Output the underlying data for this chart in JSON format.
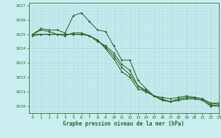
{
  "title": "Graphe pression niveau de la mer (hPa)",
  "bg_color": "#c8eef0",
  "grid_color": "#afd8da",
  "line_color": "#2d6a2d",
  "xlim": [
    -0.5,
    23
  ],
  "ylim": [
    1019.5,
    1027.2
  ],
  "yticks": [
    1020,
    1021,
    1022,
    1023,
    1024,
    1025,
    1026,
    1027
  ],
  "xticks": [
    0,
    1,
    2,
    3,
    4,
    5,
    6,
    7,
    8,
    9,
    10,
    11,
    12,
    13,
    14,
    15,
    16,
    17,
    18,
    19,
    20,
    21,
    22,
    23
  ],
  "series": [
    {
      "x": [
        0,
        1,
        2,
        3,
        4,
        5,
        6,
        7,
        8,
        9,
        10,
        11,
        12,
        13,
        14,
        15,
        16,
        17,
        18,
        19,
        20,
        21,
        22,
        23
      ],
      "y": [
        1025.0,
        1025.4,
        1025.3,
        1025.3,
        1025.1,
        1026.3,
        1026.5,
        1025.9,
        1025.3,
        1025.2,
        1024.2,
        1023.2,
        1023.2,
        1021.8,
        1021.2,
        1020.7,
        1020.6,
        1020.5,
        1020.6,
        1020.7,
        1020.6,
        1020.5,
        1020.2,
        1020.2
      ]
    },
    {
      "x": [
        0,
        1,
        2,
        3,
        4,
        5,
        6,
        7,
        8,
        9,
        10,
        11,
        12,
        13,
        14,
        15,
        16,
        17,
        18,
        19,
        20,
        21,
        22,
        23
      ],
      "y": [
        1025.0,
        1025.3,
        1025.2,
        1025.0,
        1024.9,
        1025.1,
        1025.1,
        1024.9,
        1024.5,
        1024.2,
        1023.7,
        1022.9,
        1022.5,
        1021.4,
        1021.1,
        1020.7,
        1020.5,
        1020.3,
        1020.5,
        1020.6,
        1020.6,
        1020.5,
        1020.1,
        1020.2
      ]
    },
    {
      "x": [
        0,
        1,
        2,
        3,
        4,
        5,
        6,
        7,
        8,
        9,
        10,
        11,
        12,
        13,
        14,
        15,
        16,
        17,
        18,
        19,
        20,
        21,
        22,
        23
      ],
      "y": [
        1024.9,
        1025.0,
        1025.0,
        1025.0,
        1025.0,
        1025.0,
        1025.0,
        1024.9,
        1024.6,
        1024.1,
        1023.5,
        1022.7,
        1022.2,
        1021.4,
        1021.0,
        1020.7,
        1020.4,
        1020.3,
        1020.4,
        1020.5,
        1020.5,
        1020.4,
        1020.0,
        1020.1
      ]
    },
    {
      "x": [
        0,
        1,
        2,
        3,
        4,
        5,
        6,
        7,
        8,
        9,
        10,
        11,
        12,
        13,
        14,
        15,
        16,
        17,
        18,
        19,
        20,
        21,
        22,
        23
      ],
      "y": [
        1025.0,
        1025.0,
        1025.0,
        1025.0,
        1025.0,
        1025.0,
        1025.0,
        1024.9,
        1024.6,
        1024.0,
        1023.3,
        1022.4,
        1022.0,
        1021.2,
        1021.0,
        1020.7,
        1020.4,
        1020.3,
        1020.4,
        1020.5,
        1020.5,
        1020.4,
        1020.0,
        1020.0
      ]
    }
  ],
  "figsize": [
    3.2,
    2.0
  ],
  "dpi": 100,
  "title_fontsize": 5.5,
  "tick_fontsize": 4.5
}
